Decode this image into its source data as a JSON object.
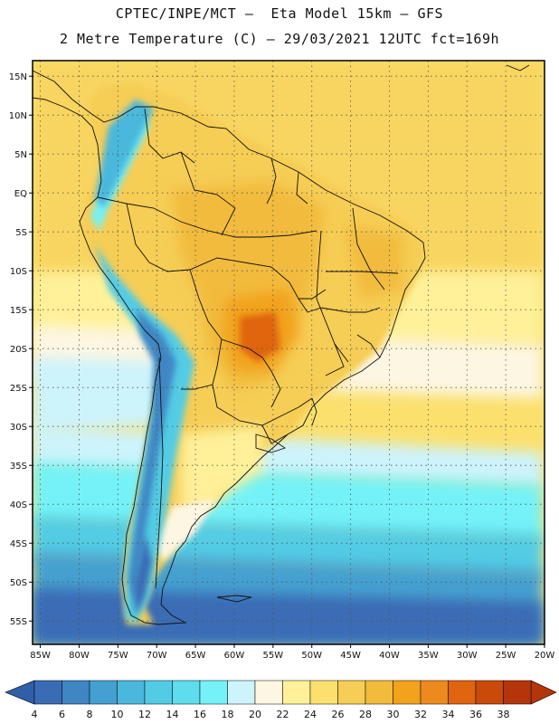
{
  "title_line1": "CPTEC/INPE/MCT –  Eta Model 15km – GFS",
  "title_line2": "2 Metre Temperature (C) – 29/03/2021 12UTC fct=169h",
  "map": {
    "lat_labels": [
      "15N",
      "10N",
      "5N",
      "EQ",
      "5S",
      "10S",
      "15S",
      "20S",
      "25S",
      "30S",
      "35S",
      "40S",
      "45S",
      "50S",
      "55S"
    ],
    "lat_values": [
      15,
      10,
      5,
      0,
      -5,
      -10,
      -15,
      -20,
      -25,
      -30,
      -35,
      -40,
      -45,
      -50,
      -55
    ],
    "lon_labels": [
      "85W",
      "80W",
      "75W",
      "70W",
      "65W",
      "60W",
      "55W",
      "50W",
      "45W",
      "40W",
      "35W",
      "30W",
      "25W",
      "20W"
    ],
    "lon_values": [
      -85,
      -80,
      -75,
      -70,
      -65,
      -60,
      -55,
      -50,
      -45,
      -40,
      -35,
      -30,
      -25,
      -20
    ],
    "lat_range": [
      -58,
      17
    ],
    "lon_range": [
      -86,
      -20
    ]
  },
  "colorbar": {
    "labels": [
      "4",
      "6",
      "8",
      "10",
      "12",
      "14",
      "16",
      "18",
      "20",
      "22",
      "24",
      "26",
      "28",
      "30",
      "32",
      "34",
      "36",
      "38"
    ],
    "colors": [
      "#3a6cb5",
      "#3f86c4",
      "#44a0d0",
      "#4ab8dc",
      "#52cce4",
      "#5edded",
      "#74f2f7",
      "#cdf3fb",
      "#fdf6e2",
      "#fef19a",
      "#fbe06e",
      "#f6cd55",
      "#f2bb3c",
      "#f2a21b",
      "#ec8a1e",
      "#e0650f",
      "#c94a09",
      "#b5350a"
    ],
    "left_arrow_color": "#2f5fa8",
    "right_arrow_color": "#b5350a"
  },
  "colors": {
    "frame": "#000000",
    "grid": "#555555",
    "boundary": "#111111"
  }
}
